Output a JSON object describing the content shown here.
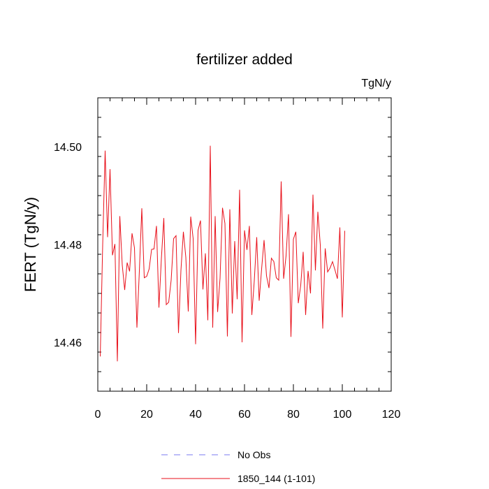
{
  "chart_data": {
    "type": "line",
    "title": "fertilizer added",
    "units": "TgN/y",
    "xlabel": "",
    "ylabel": "FERT  (TgN/y)",
    "xlim": [
      0,
      120
    ],
    "ylim": [
      14.45,
      14.51
    ],
    "xticks": [
      0,
      20,
      40,
      60,
      80,
      100,
      120
    ],
    "yticks": [
      14.46,
      14.48,
      14.5
    ],
    "grid": false,
    "legend_position": "bottom",
    "legend": [
      {
        "label": "No Obs",
        "color": "#7b7bf0",
        "dash": true
      },
      {
        "label": "1850_144 (1-101)",
        "color": "#e8111b",
        "dash": false
      }
    ],
    "series": [
      {
        "name": "1850_144 (1-101)",
        "color": "#e8111b",
        "x": [
          1,
          2,
          3,
          4,
          5,
          6,
          7,
          8,
          9,
          10,
          11,
          12,
          13,
          14,
          15,
          16,
          17,
          18,
          19,
          20,
          21,
          22,
          23,
          24,
          25,
          26,
          27,
          28,
          29,
          30,
          31,
          32,
          33,
          34,
          35,
          36,
          37,
          38,
          39,
          40,
          41,
          42,
          43,
          44,
          45,
          46,
          47,
          48,
          49,
          50,
          51,
          52,
          53,
          54,
          55,
          56,
          57,
          58,
          59,
          60,
          61,
          62,
          63,
          64,
          65,
          66,
          67,
          68,
          69,
          70,
          71,
          72,
          73,
          74,
          75,
          76,
          77,
          78,
          79,
          80,
          81,
          82,
          83,
          84,
          85,
          86,
          87,
          88,
          89,
          90,
          91,
          92,
          93,
          94,
          95,
          96,
          97,
          98,
          99,
          100,
          101
        ],
        "values": [
          14.4571,
          14.48,
          14.4992,
          14.4815,
          14.4954,
          14.4778,
          14.4801,
          14.4561,
          14.4858,
          14.4758,
          14.4707,
          14.4763,
          14.4745,
          14.4823,
          14.4793,
          14.463,
          14.4746,
          14.4874,
          14.4732,
          14.4735,
          14.475,
          14.479,
          14.4791,
          14.4838,
          14.4671,
          14.4771,
          14.4854,
          14.4677,
          14.4682,
          14.4727,
          14.4812,
          14.4818,
          14.4619,
          14.4747,
          14.4826,
          14.4774,
          14.4663,
          14.4857,
          14.4812,
          14.4596,
          14.4829,
          14.4849,
          14.4708,
          14.4782,
          14.4645,
          14.5002,
          14.463,
          14.4858,
          14.4662,
          14.4731,
          14.4875,
          14.4843,
          14.4612,
          14.4872,
          14.4659,
          14.4807,
          14.4688,
          14.4912,
          14.46,
          14.4829,
          14.4789,
          14.4838,
          14.4656,
          14.4726,
          14.4815,
          14.4685,
          14.475,
          14.4809,
          14.4736,
          14.4711,
          14.4772,
          14.4765,
          14.4732,
          14.4727,
          14.4929,
          14.473,
          14.4777,
          14.4862,
          14.4611,
          14.4811,
          14.4826,
          14.468,
          14.4717,
          14.4785,
          14.4656,
          14.4746,
          14.47,
          14.4902,
          14.4747,
          14.4867,
          14.4799,
          14.4628,
          14.4792,
          14.4744,
          14.4752,
          14.4765,
          14.4748,
          14.473,
          14.4835,
          14.4651,
          14.4828
        ]
      }
    ]
  }
}
